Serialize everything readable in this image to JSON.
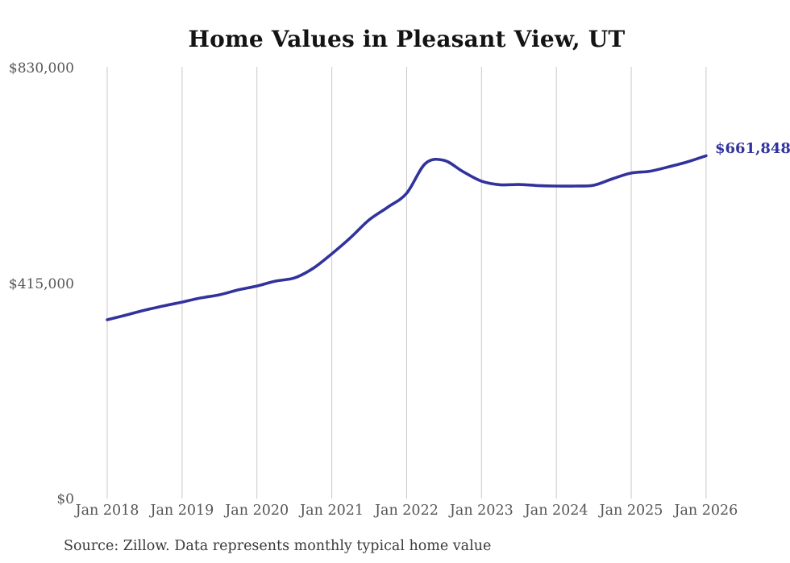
{
  "title": "Home Values in Pleasant View, UT",
  "end_label": "$661,848",
  "source_note": "Source: Zillow. Data represents monthly typical home value",
  "colors": {
    "line": "#32329d",
    "grid": "#c9c9c9",
    "tick_text": "#555555",
    "title_text": "#141414",
    "source_text": "#3a3a3a",
    "background": "#ffffff"
  },
  "chart_data": {
    "type": "line",
    "title": "Home Values in Pleasant View, UT",
    "series_name": "Typical home value (monthly)",
    "x": [
      "Jan 2018",
      "Apr 2018",
      "Jul 2018",
      "Oct 2018",
      "Jan 2019",
      "Apr 2019",
      "Jul 2019",
      "Oct 2019",
      "Jan 2020",
      "Apr 2020",
      "Jul 2020",
      "Oct 2020",
      "Jan 2021",
      "Apr 2021",
      "Jul 2021",
      "Oct 2021",
      "Jan 2022",
      "Apr 2022",
      "Jul 2022",
      "Oct 2022",
      "Jan 2023",
      "Apr 2023",
      "Jul 2023",
      "Oct 2023",
      "Jan 2024",
      "Apr 2024",
      "Jul 2024",
      "Oct 2024",
      "Jan 2025",
      "Apr 2025",
      "Jul 2025",
      "Oct 2025",
      "Jan 2026"
    ],
    "values": [
      346000,
      355000,
      364500,
      372500,
      380000,
      388000,
      394000,
      403500,
      411000,
      420500,
      426500,
      445000,
      473000,
      504000,
      538500,
      563000,
      589500,
      647000,
      653000,
      631500,
      613000,
      606000,
      606500,
      604500,
      603500,
      603500,
      605000,
      617500,
      628500,
      632000,
      640500,
      650000,
      661848
    ],
    "x_tick_labels": [
      "Jan 2018",
      "Jan 2019",
      "Jan 2020",
      "Jan 2021",
      "Jan 2022",
      "Jan 2023",
      "Jan 2024",
      "Jan 2025",
      "Jan 2026"
    ],
    "y_ticks": [
      {
        "label": "$0",
        "value": 0
      },
      {
        "label": "$415,000",
        "value": 415000
      },
      {
        "label": "$830,000",
        "value": 830000
      }
    ],
    "ylim": [
      0,
      830000
    ],
    "grid": "vertical",
    "legend": "none",
    "end_value": 661848,
    "line_end_annotation": "$661,848"
  }
}
